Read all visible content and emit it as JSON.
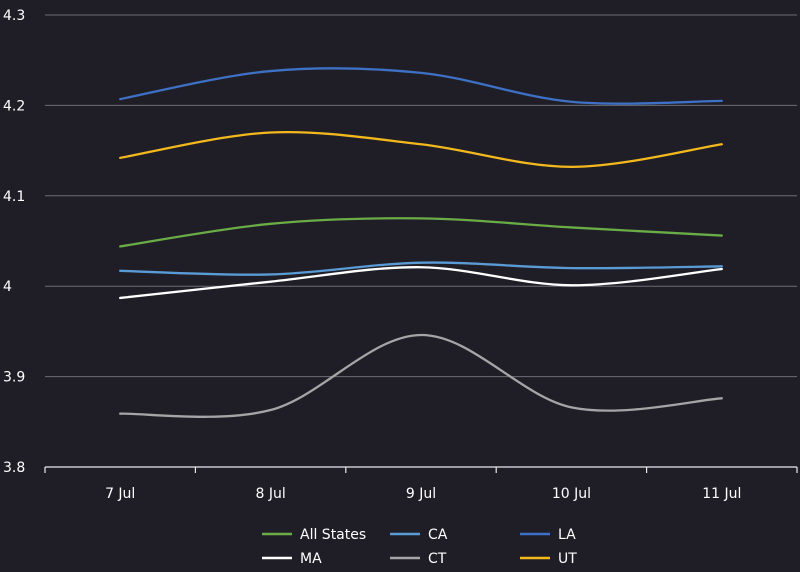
{
  "chart_data": {
    "type": "line",
    "title": "",
    "xlabel": "",
    "ylabel": "",
    "categories": [
      "7 Jul",
      "8 Jul",
      "9 Jul",
      "10 Jul",
      "11 Jul"
    ],
    "ylim": [
      3.8,
      4.3
    ],
    "yticks": [
      3.8,
      3.9,
      4,
      4.1,
      4.2,
      4.3
    ],
    "ytick_labels": [
      "3.8",
      "3.9",
      "4",
      "4.1",
      "4.2",
      "4.3"
    ],
    "grid": true,
    "legend_position": "bottom",
    "series": [
      {
        "name": "All States",
        "color": "#6aac46",
        "values": [
          4.044,
          4.069,
          4.075,
          4.065,
          4.056
        ]
      },
      {
        "name": "CA",
        "color": "#5b9bd5",
        "values": [
          4.017,
          4.013,
          4.026,
          4.02,
          4.022
        ]
      },
      {
        "name": "LA",
        "color": "#3e70c4",
        "values": [
          4.207,
          4.238,
          4.236,
          4.204,
          4.205
        ]
      },
      {
        "name": "MA",
        "color": "#ffffff",
        "values": [
          3.987,
          4.005,
          4.021,
          4.001,
          4.019
        ]
      },
      {
        "name": "CT",
        "color": "#a5a5a5",
        "values": [
          3.859,
          3.863,
          3.946,
          3.866,
          3.876
        ]
      },
      {
        "name": "UT",
        "color": "#f2b81d",
        "values": [
          4.142,
          4.17,
          4.157,
          4.132,
          4.157
        ]
      }
    ]
  }
}
